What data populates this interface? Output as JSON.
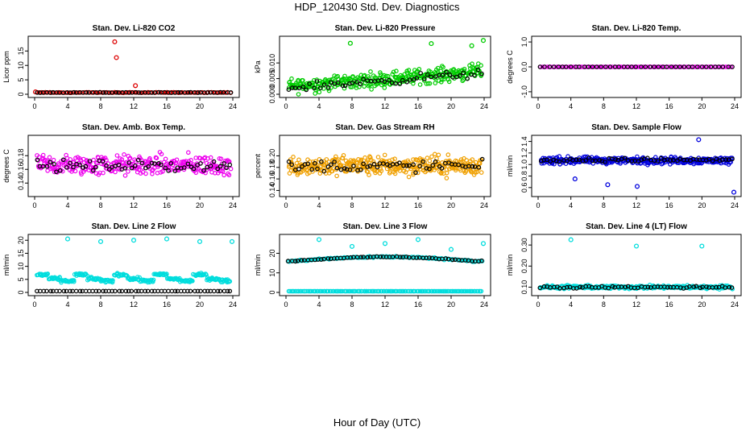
{
  "title": "HDP_120430  Std. Dev. Diagnostics",
  "xlabel": "Hour of Day (UTC)",
  "chart_data": [
    {
      "type": "scatter",
      "title": "Stan. Dev. Li-820 CO2",
      "ylabel": "Licor ppm",
      "xlim": [
        0,
        24
      ],
      "ylim": [
        0,
        19
      ],
      "xticks": [
        "0",
        "4",
        "8",
        "12",
        "16",
        "20",
        "24"
      ],
      "yticks": [
        "0",
        "5",
        "10",
        "15"
      ],
      "series": [
        {
          "name": "red",
          "color": "#dd0000",
          "pattern": "flat",
          "base": 0.6,
          "jitter": 0.15,
          "n": 90,
          "points": [
            [
              0.1,
              0.8
            ],
            [
              9.7,
              18.2
            ],
            [
              9.9,
              12.7
            ],
            [
              12.2,
              3.0
            ]
          ]
        },
        {
          "name": "black",
          "color": "#000000",
          "pattern": "flat",
          "base": 0.6,
          "jitter": 0.1,
          "n": 60
        }
      ]
    },
    {
      "type": "scatter",
      "title": "Stan. Dev. Li-820 Pressure",
      "ylabel": "kPa",
      "xlim": [
        0,
        24
      ],
      "ylim": [
        0,
        0.0175
      ],
      "xticks": [
        "0",
        "4",
        "8",
        "12",
        "16",
        "20",
        "24"
      ],
      "yticks": [
        "0.000",
        "0.005",
        "0.010"
      ],
      "series": [
        {
          "name": "green",
          "color": "#00cc00",
          "pattern": "rising",
          "base": 0.0025,
          "slope": 0.0002,
          "jitter": 0.0035,
          "n": 320,
          "points": [
            [
              7.8,
              0.0163
            ],
            [
              17.6,
              0.0162
            ],
            [
              23.9,
              0.0172
            ],
            [
              22.5,
              0.0155
            ]
          ]
        },
        {
          "name": "black",
          "color": "#000000",
          "pattern": "rising",
          "base": 0.002,
          "slope": 0.0002,
          "jitter": 0.002,
          "n": 55
        }
      ]
    },
    {
      "type": "scatter",
      "title": "Stan. Dev. Li-820 Temp.",
      "ylabel": "degrees C",
      "xlim": [
        0,
        24
      ],
      "ylim": [
        -1.1,
        1.1
      ],
      "xticks": [
        "0",
        "4",
        "8",
        "12",
        "16",
        "20",
        "24"
      ],
      "yticks": [
        "-1.0",
        "0.0",
        "1.0"
      ],
      "series": [
        {
          "name": "magenta",
          "color": "#ff00ff",
          "pattern": "flat",
          "base": 0.0,
          "jitter": 0.0,
          "n": 110
        },
        {
          "name": "black",
          "color": "#000000",
          "pattern": "flat",
          "base": 0.0,
          "jitter": 0.0,
          "n": 45
        }
      ]
    },
    {
      "type": "scatter",
      "title": "Stan. Dev. Amb. Box Temp.",
      "ylabel": "degrees C",
      "xlim": [
        0,
        24
      ],
      "ylim": [
        0.125,
        0.205
      ],
      "xticks": [
        "0",
        "4",
        "8",
        "12",
        "16",
        "20",
        "24"
      ],
      "yticks": [
        "0.14",
        "0.16",
        "0.18"
      ],
      "series": [
        {
          "name": "magenta",
          "color": "#ee00ee",
          "pattern": "flat",
          "base": 0.166,
          "jitter": 0.022,
          "n": 300
        },
        {
          "name": "black",
          "color": "#000000",
          "pattern": "flat",
          "base": 0.165,
          "jitter": 0.012,
          "n": 60
        }
      ]
    },
    {
      "type": "scatter",
      "title": "Stan. Dev. Gas Stream RH",
      "ylabel": "percent",
      "xlim": [
        0,
        24
      ],
      "ylim": [
        0.135,
        0.23
      ],
      "xticks": [
        "0",
        "4",
        "8",
        "12",
        "16",
        "20",
        "24"
      ],
      "yticks": [
        "0.14",
        "0.16",
        "0.18",
        "0.20"
      ],
      "series": [
        {
          "name": "orange",
          "color": "#f0a000",
          "pattern": "flat",
          "base": 0.183,
          "jitter": 0.025,
          "n": 360
        },
        {
          "name": "black",
          "color": "#000000",
          "pattern": "flat",
          "base": 0.182,
          "jitter": 0.015,
          "n": 60
        }
      ]
    },
    {
      "type": "scatter",
      "title": "Stan. Dev. Sample Flow",
      "ylabel": "ml/min",
      "xlim": [
        0,
        24
      ],
      "ylim": [
        0.5,
        1.45
      ],
      "xticks": [
        "0",
        "4",
        "8",
        "12",
        "16",
        "20",
        "24"
      ],
      "yticks": [
        "0.6",
        "0.8",
        "1.0",
        "1.2",
        "1.4"
      ],
      "series": [
        {
          "name": "blue",
          "color": "#0000dd",
          "pattern": "flat",
          "base": 1.07,
          "jitter": 0.09,
          "n": 320,
          "points": [
            [
              23.9,
              0.52
            ],
            [
              19.6,
              1.43
            ],
            [
              4.5,
              0.75
            ],
            [
              8.5,
              0.65
            ],
            [
              12.1,
              0.62
            ]
          ]
        },
        {
          "name": "black",
          "color": "#000000",
          "pattern": "flat",
          "base": 1.08,
          "jitter": 0.05,
          "n": 60
        }
      ]
    },
    {
      "type": "scatter",
      "title": "Stan. Dev. Line 2 Flow",
      "ylabel": "ml/min",
      "xlim": [
        0,
        24
      ],
      "ylim": [
        0,
        21
      ],
      "xticks": [
        "0",
        "4",
        "8",
        "12",
        "16",
        "20",
        "24"
      ],
      "yticks": [
        "0",
        "5",
        "10",
        "15",
        "20"
      ],
      "series": [
        {
          "name": "cyan",
          "color": "#00dddd",
          "pattern": "steps",
          "base": 5.0,
          "jitter": 0.8,
          "n": 260,
          "points": [
            [
              4.0,
              20.5
            ],
            [
              8.0,
              19.5
            ],
            [
              12.0,
              20.0
            ],
            [
              16.0,
              20.5
            ],
            [
              20.0,
              19.5
            ],
            [
              23.9,
              19.5
            ]
          ]
        },
        {
          "name": "black",
          "color": "#000000",
          "pattern": "flat",
          "base": 0.5,
          "jitter": 0.0,
          "n": 60
        }
      ]
    },
    {
      "type": "scatter",
      "title": "Stan. Dev. Line 3 Flow",
      "ylabel": "ml/min",
      "xlim": [
        0,
        24
      ],
      "ylim": [
        0,
        28
      ],
      "xticks": [
        "0",
        "4",
        "8",
        "12",
        "16",
        "20",
        "24"
      ],
      "yticks": [
        "0",
        "10",
        "20"
      ],
      "series": [
        {
          "name": "cyan",
          "color": "#00dddd",
          "pattern": "hump",
          "base": 16.0,
          "jitter": 0.6,
          "n": 150,
          "points": [
            [
              4.0,
              27.0
            ],
            [
              8.0,
              23.5
            ],
            [
              12.0,
              25.0
            ],
            [
              16.0,
              27.0
            ],
            [
              20.0,
              22.0
            ],
            [
              23.9,
              25.0
            ]
          ]
        },
        {
          "name": "cyan-base",
          "color": "#00dddd",
          "pattern": "flat",
          "base": 0.6,
          "jitter": 0.0,
          "n": 150
        },
        {
          "name": "black",
          "color": "#000000",
          "pattern": "hump",
          "base": 16.0,
          "jitter": 0.3,
          "n": 60
        }
      ]
    },
    {
      "type": "scatter",
      "title": "Stan. Dev. Line 4 (LT) Flow",
      "ylabel": "ml/min",
      "xlim": [
        0,
        24
      ],
      "ylim": [
        0.075,
        0.335
      ],
      "xticks": [
        "0",
        "4",
        "8",
        "12",
        "16",
        "20",
        "24"
      ],
      "yticks": [
        "0.10",
        "0.20",
        "0.30"
      ],
      "series": [
        {
          "name": "cyan",
          "color": "#00dddd",
          "pattern": "flat",
          "base": 0.1,
          "jitter": 0.012,
          "n": 300,
          "points": [
            [
              4.0,
              0.325
            ],
            [
              12.0,
              0.295
            ],
            [
              20.0,
              0.295
            ]
          ]
        },
        {
          "name": "black",
          "color": "#000000",
          "pattern": "flat",
          "base": 0.1,
          "jitter": 0.008,
          "n": 60
        }
      ]
    }
  ]
}
